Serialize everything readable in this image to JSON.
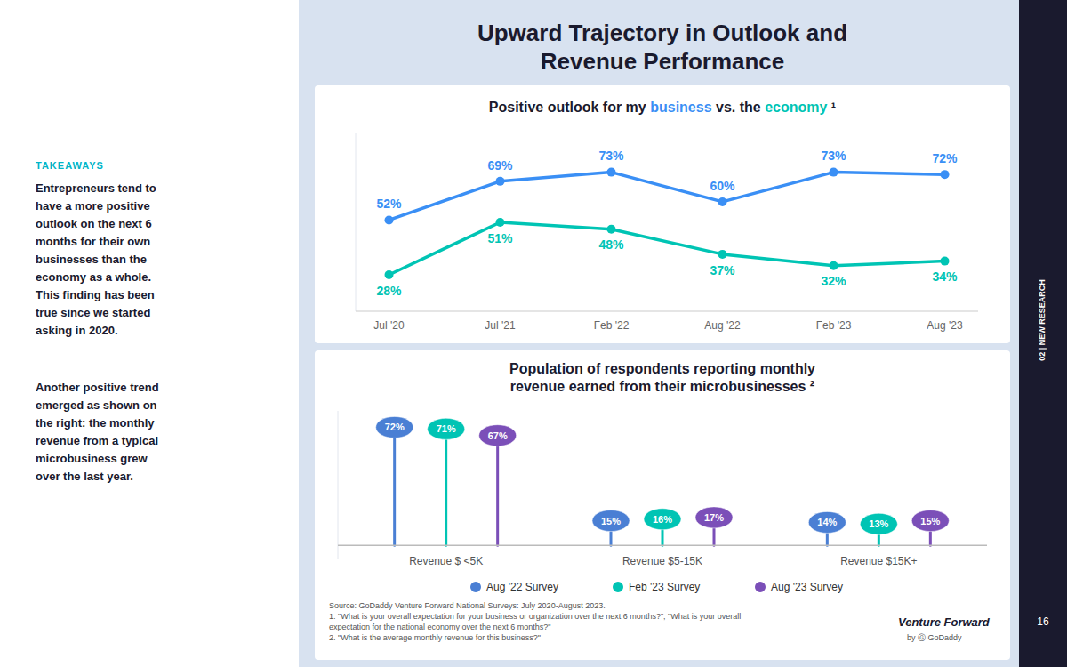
{
  "title": "Upward Trajectory in Outlook and\nRevenue Performance",
  "annotations": [
    "TAKEAWAYS",
    "Entrepreneurs tend to\nhave a more positive\noutlook on the next 6\nmonths for their own\nbusinesses than the\neconomy as a whole.\nThis finding has been\ntrue since we started\nasking in 2020.",
    "Another positive trend\nemerged as shown on\nthe right: the monthly\nrevenue from a typical\nmicrobusiness grew\nover the last year."
  ],
  "footnotes": [
    "Source: GoDaddy Venture Forward National Surveys: July 2020-August 2023.",
    "1. \"What is your overall expectation for your business or organization over the next 6 months?\"; \"What is your overall",
    "expectation for the national economy over the next 6 months?\"",
    "2. \"What is the average monthly revenue for this business?\""
  ],
  "brand": [
    "Venture Forward",
    "by Ⓖ GoDaddy"
  ],
  "section_label": "02 | NEW RESEARCH",
  "page_number": "16",
  "chart_data": [
    {
      "type": "line",
      "title": "Positive outlook for my business vs. the economy ¹",
      "categories": [
        "Jul '20",
        "Jul '21",
        "Feb '22",
        "Aug '22",
        "Feb '23",
        "Aug '23"
      ],
      "series": [
        {
          "name": "business",
          "color": "#3a8ff5",
          "values": [
            52,
            69,
            73,
            60,
            73,
            72
          ],
          "value_labels": [
            "52%",
            "69%",
            "73%",
            "60%",
            "73%",
            "72%"
          ]
        },
        {
          "name": "economy",
          "color": "#00c4b4",
          "values": [
            28,
            51,
            48,
            37,
            32,
            34
          ],
          "value_labels": [
            "28%",
            "51%",
            "48%",
            "37%",
            "32%",
            "34%"
          ]
        }
      ],
      "ylim": [
        12,
        90
      ],
      "tick_labels": "x",
      "data_labels": true,
      "marker": "circle"
    },
    {
      "type": "lollipop",
      "title": "Population of respondents reporting monthly\nrevenue earned from their microbusinesses ²",
      "categories": [
        "Revenue $ <5K",
        "Revenue $5-15K",
        "Revenue $15K+"
      ],
      "series": [
        {
          "name": "Aug '22 Survey",
          "color": "#4a7fd4",
          "values": [
            72,
            15,
            14
          ],
          "value_labels": [
            "72%",
            "15%",
            "14%"
          ]
        },
        {
          "name": "Feb '23 Survey",
          "color": "#00c4b4",
          "values": [
            71,
            16,
            13
          ],
          "value_labels": [
            "71%",
            "16%",
            "13%"
          ]
        },
        {
          "name": "Aug '23 Survey",
          "color": "#7b4fb8",
          "values": [
            67,
            17,
            15
          ],
          "value_labels": [
            "67%",
            "17%",
            "15%"
          ]
        }
      ],
      "ylim": [
        -8,
        82
      ],
      "tick_labels": "x",
      "data_labels": true,
      "legend": "bottom"
    }
  ]
}
